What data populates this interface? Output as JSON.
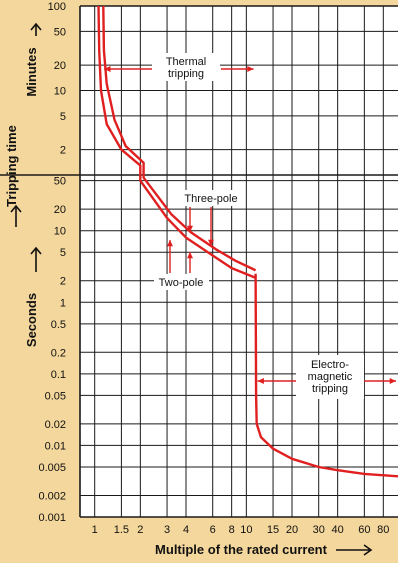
{
  "chart_data": {
    "type": "line",
    "title": "",
    "xlabel": "Multiple of the rated current",
    "ylabel": "Tripping time",
    "y_unit_upper": "Minutes",
    "y_unit_lower": "Seconds",
    "x_scale": "log",
    "y_scale": "log",
    "grid": true,
    "xlim": [
      0.8,
      100
    ],
    "x_ticks": [
      1,
      1.5,
      2,
      3,
      4,
      6,
      8,
      10,
      15,
      20,
      30,
      40,
      60,
      80
    ],
    "x_tick_labels": [
      "1",
      "1.5",
      "2",
      "3",
      "4",
      "6",
      "8",
      "10",
      "15",
      "20",
      "30",
      "40",
      "60",
      "80"
    ],
    "minutes_range": [
      1,
      100
    ],
    "minutes_ticks": [
      2,
      5,
      10,
      20,
      50,
      100
    ],
    "minutes_tick_labels": [
      "2",
      "5",
      "10",
      "20",
      "50",
      "100"
    ],
    "seconds_range": [
      0.001,
      60
    ],
    "seconds_ticks": [
      0.001,
      0.002,
      0.005,
      0.01,
      0.02,
      0.05,
      0.1,
      0.2,
      0.5,
      1,
      2,
      5,
      10,
      20,
      50
    ],
    "seconds_tick_labels": [
      "0.001",
      "0.002",
      "0.005",
      "0.01",
      "0.02",
      "0.05",
      "0.1",
      "0.2",
      "0.5",
      "1",
      "2",
      "5",
      "10",
      "20",
      "50"
    ],
    "series": [
      {
        "name": "Two-pole",
        "thermal_minutes": [
          [
            1.06,
            100
          ],
          [
            1.07,
            30
          ],
          [
            1.1,
            10
          ],
          [
            1.2,
            4
          ],
          [
            1.5,
            2
          ],
          [
            2,
            1.3
          ]
        ],
        "thermal_seconds": [
          [
            2,
            50
          ],
          [
            3,
            15
          ],
          [
            4,
            8
          ],
          [
            6,
            4.5
          ],
          [
            8,
            3
          ],
          [
            11.5,
            2.2
          ]
        ]
      },
      {
        "name": "Three-pole",
        "thermal_minutes": [
          [
            1.14,
            100
          ],
          [
            1.15,
            30
          ],
          [
            1.2,
            12
          ],
          [
            1.35,
            4.5
          ],
          [
            1.6,
            2.2
          ],
          [
            2.1,
            1.4
          ]
        ],
        "thermal_seconds": [
          [
            2.1,
            55
          ],
          [
            3.2,
            17
          ],
          [
            4.3,
            9.5
          ],
          [
            6.3,
            5.5
          ],
          [
            8.5,
            3.8
          ],
          [
            11.5,
            2.8
          ]
        ]
      }
    ],
    "magnetic_curve": [
      [
        11.5,
        2.5
      ],
      [
        11.6,
        0.05
      ],
      [
        11.7,
        0.02
      ],
      [
        12.5,
        0.013
      ],
      [
        15,
        0.009
      ],
      [
        20,
        0.0065
      ],
      [
        30,
        0.005
      ],
      [
        40,
        0.0045
      ],
      [
        60,
        0.004
      ],
      [
        100,
        0.0037
      ]
    ],
    "annotations": [
      {
        "text": "Thermal tripping",
        "lines": [
          "Thermal",
          "tripping"
        ]
      },
      {
        "text": "Three-pole",
        "lines": [
          "Three-pole"
        ]
      },
      {
        "text": "Two-pole",
        "lines": [
          "Two-pole"
        ]
      },
      {
        "text": "Electro-magnetic tripping",
        "lines": [
          "Electro-",
          "magnetic",
          "tripping"
        ]
      }
    ],
    "colors": {
      "background": "#f4d79c",
      "plot": "#ffffff",
      "grid": "#1a1a1a",
      "curve": "#e02020",
      "text": "#111111"
    }
  }
}
